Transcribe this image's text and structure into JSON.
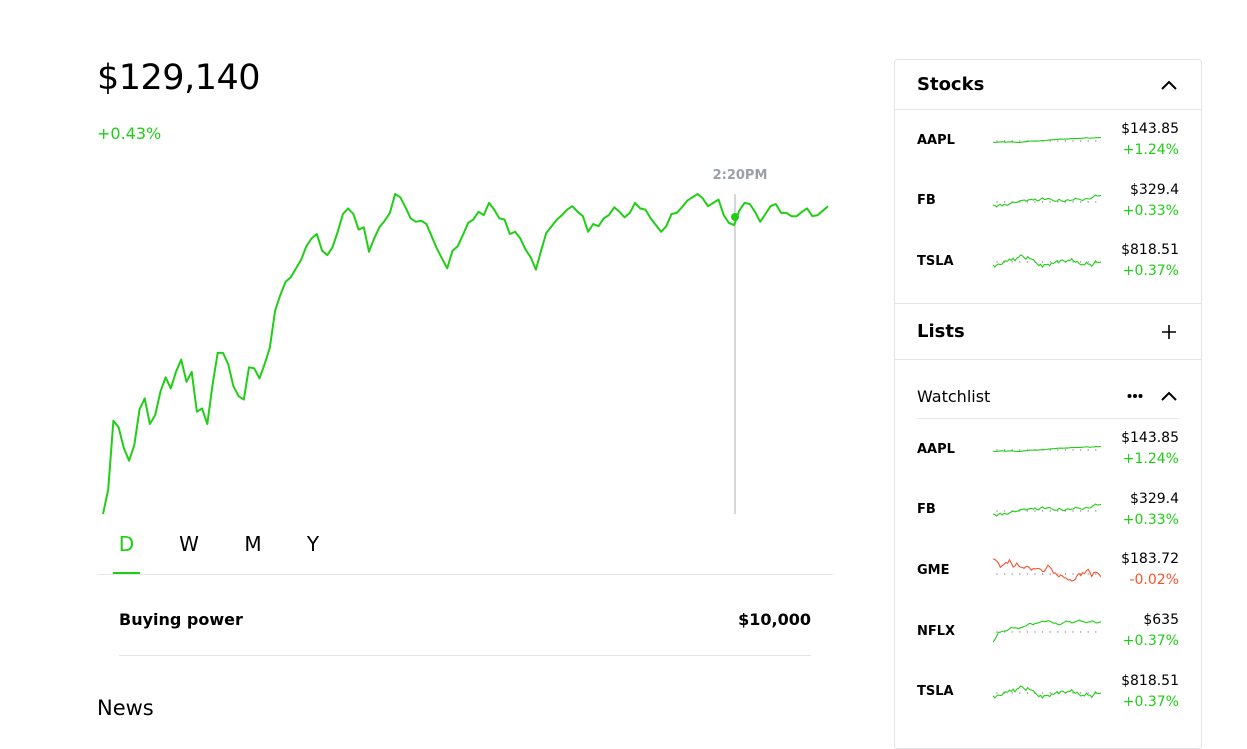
{
  "portfolio": {
    "value": "$129,140",
    "change": "+0.43%",
    "tooltip_time": "2:20PM",
    "accent_color": "#21ce16",
    "series": [
      58,
      36,
      -26,
      -20,
      -1,
      10,
      -4,
      -36,
      -46,
      -23,
      -31,
      -52,
      -65,
      -55,
      -70,
      -81,
      -61,
      -70,
      -34,
      -37,
      -23,
      -58,
      -87,
      -87,
      -77,
      -57,
      -48,
      -45,
      -74,
      -73,
      -64,
      -77,
      -92,
      -125,
      -139,
      -151,
      -155,
      -163,
      -171,
      -183,
      -190,
      -194,
      -179,
      -175,
      -182,
      -196,
      -212,
      -217,
      -212,
      -198,
      -200,
      -178,
      -190,
      -200,
      -206,
      -213,
      -230,
      -227,
      -218,
      -208,
      -205,
      -206,
      -203,
      -192,
      -181,
      -172,
      -163,
      -179,
      -183,
      -193,
      -204,
      -207,
      -214,
      -211,
      -222,
      -216,
      -208,
      -207,
      -194,
      -196,
      -190,
      -180,
      -173,
      -162,
      -179,
      -195,
      -201,
      -207,
      -211,
      -216,
      -219,
      -214,
      -210,
      -196,
      -203,
      -201,
      -208,
      -211,
      -218,
      -214,
      -209,
      -213,
      -222,
      -217,
      -216,
      -208,
      -202,
      -196,
      -201,
      -212,
      -213,
      -218,
      -224,
      -227,
      -230,
      -226,
      -219,
      -222,
      -225,
      -211,
      -204,
      -202,
      -215,
      -222,
      -221,
      -214,
      -205,
      -212,
      -219,
      -221,
      -213,
      -213,
      -210,
      -210,
      -214,
      -217,
      -210,
      -211,
      -215,
      -219
    ]
  },
  "ranges": [
    "D",
    "W",
    "M",
    "Y"
  ],
  "active_range": "D",
  "buying_power": {
    "label": "Buying power",
    "value": "$10,000"
  },
  "news": {
    "title": "News"
  },
  "sidebar": {
    "stocks_title": "Stocks",
    "lists_title": "Lists",
    "watchlist_title": "Watchlist",
    "icons": {
      "collapse": "chevron-up-icon",
      "add": "plus-icon",
      "more": "more-dots-icon"
    },
    "stocks": [
      {
        "ticker": "AAPL",
        "price": "$143.85",
        "change": "+1.24%",
        "trend": "up"
      },
      {
        "ticker": "FB",
        "price": "$329.4",
        "change": "+0.33%",
        "trend": "up"
      },
      {
        "ticker": "TSLA",
        "price": "$818.51",
        "change": "+0.37%",
        "trend": "up"
      }
    ],
    "watchlist": [
      {
        "ticker": "AAPL",
        "price": "$143.85",
        "change": "+1.24%",
        "trend": "up"
      },
      {
        "ticker": "FB",
        "price": "$329.4",
        "change": "+0.33%",
        "trend": "up"
      },
      {
        "ticker": "GME",
        "price": "$183.72",
        "change": "-0.02%",
        "trend": "down"
      },
      {
        "ticker": "NFLX",
        "price": "$635",
        "change": "+0.37%",
        "trend": "up"
      },
      {
        "ticker": "TSLA",
        "price": "$818.51",
        "change": "+0.37%",
        "trend": "up"
      }
    ],
    "colors": {
      "up": "#21ce16",
      "down": "#f45531"
    }
  }
}
